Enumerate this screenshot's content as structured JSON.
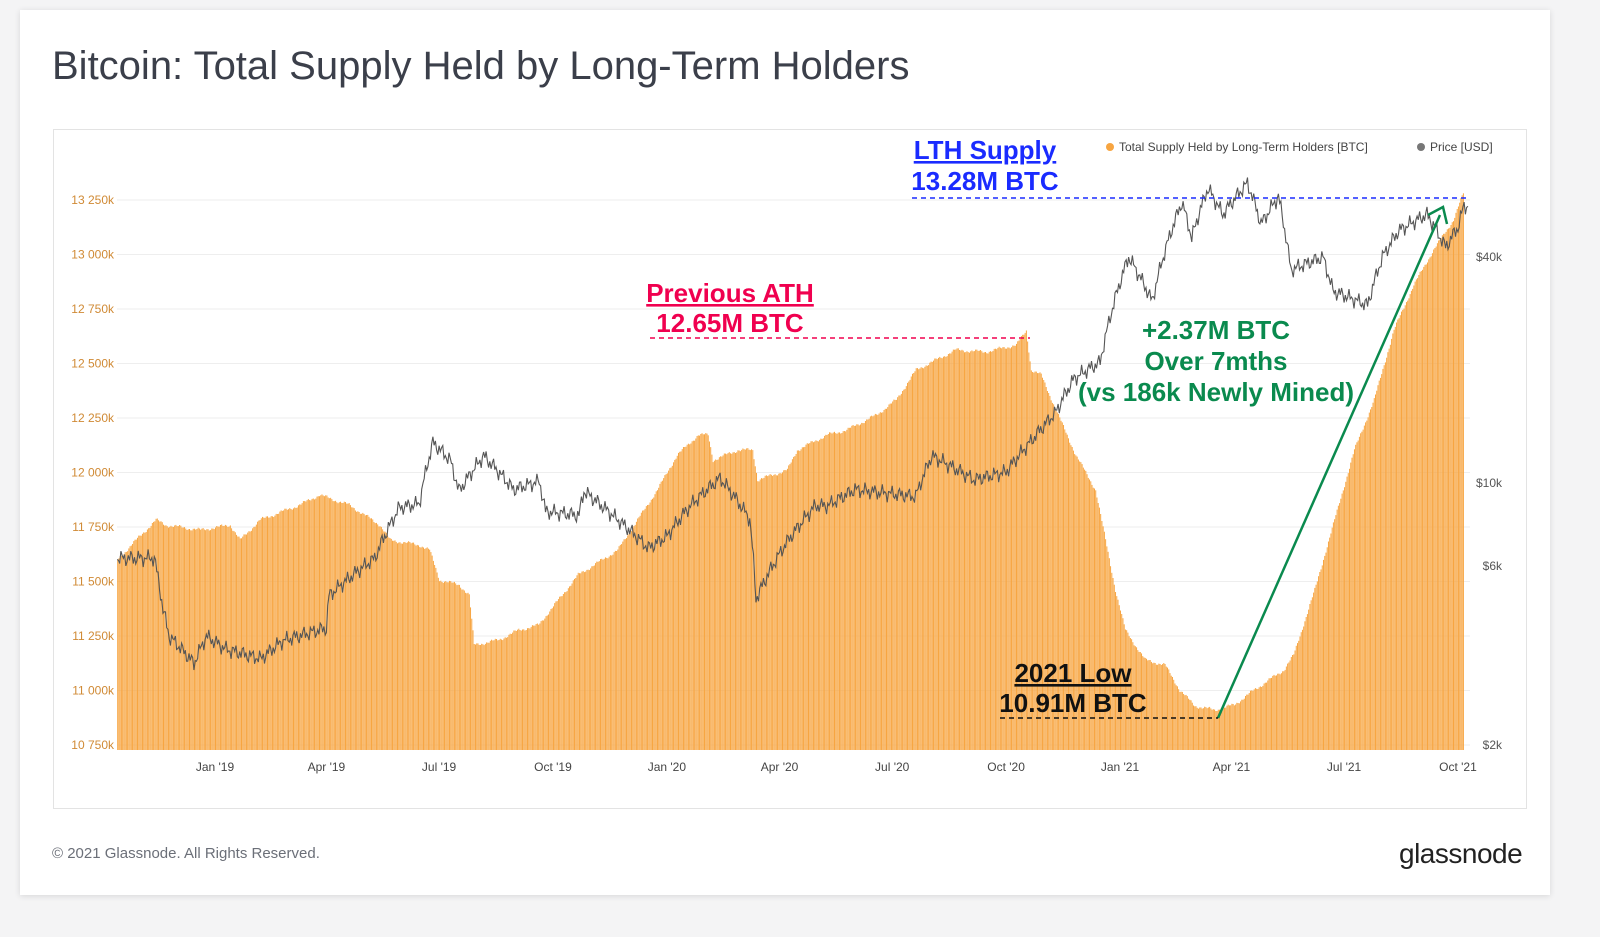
{
  "title": "Bitcoin: Total Supply Held by Long-Term Holders",
  "footer": {
    "copyright": "© 2021 Glassnode. All Rights Reserved.",
    "logo": "glassnode"
  },
  "colors": {
    "lth": "#f7a541",
    "price": "#555555",
    "lth_annotation": "#1a2bff",
    "ath_annotation": "#f0004f",
    "growth_annotation": "#0a8a4e",
    "low_annotation": "#111111"
  },
  "chart_data": {
    "type": "bar",
    "title": "Bitcoin: Total Supply Held by Long-Term Holders",
    "legend_placement": "top-right",
    "grid": true,
    "legend": [
      "Total Supply Held by Long-Term Holders [BTC]",
      "Price [USD]"
    ],
    "y_left": {
      "ticks": [
        "13 250k",
        "13 000k",
        "12 750k",
        "12 500k",
        "12 250k",
        "12 000k",
        "11 750k",
        "11 500k",
        "11 250k",
        "11 000k",
        "10 750k"
      ],
      "range": [
        10750,
        13250
      ],
      "unit": "k BTC"
    },
    "y_right": {
      "scale": "log",
      "ticks": [
        "$40k",
        "$10k",
        "$6k",
        "$2k"
      ],
      "tick_values": [
        40000,
        10000,
        6000,
        2000
      ],
      "range": [
        2000,
        70000
      ]
    },
    "x_ticks": [
      {
        "label": "Jan '19",
        "date": "2019-01-01"
      },
      {
        "label": "Apr '19",
        "date": "2019-04-01"
      },
      {
        "label": "Jul '19",
        "date": "2019-07-01"
      },
      {
        "label": "Oct '19",
        "date": "2019-10-01"
      },
      {
        "label": "Jan '20",
        "date": "2020-01-01"
      },
      {
        "label": "Apr '20",
        "date": "2020-04-01"
      },
      {
        "label": "Jul '20",
        "date": "2020-07-01"
      },
      {
        "label": "Oct '20",
        "date": "2020-10-01"
      },
      {
        "label": "Jan '21",
        "date": "2021-01-01"
      },
      {
        "label": "Apr '21",
        "date": "2021-04-01"
      },
      {
        "label": "Jul '21",
        "date": "2021-07-01"
      },
      {
        "label": "Oct '21",
        "date": "2021-10-01"
      }
    ],
    "series": [
      {
        "name": "Total Supply Held by Long-Term Holders [BTC]",
        "type": "bar",
        "unit": "k BTC",
        "points": [
          [
            "2018-10-14",
            11599
          ],
          [
            "2018-10-25",
            11667
          ],
          [
            "2018-11-14",
            11782
          ],
          [
            "2018-11-22",
            11759
          ],
          [
            "2018-12-20",
            11736
          ],
          [
            "2019-01-13",
            11759
          ],
          [
            "2019-01-21",
            11690
          ],
          [
            "2019-02-06",
            11782
          ],
          [
            "2019-03-10",
            11851
          ],
          [
            "2019-03-26",
            11897
          ],
          [
            "2019-04-19",
            11851
          ],
          [
            "2019-05-14",
            11759
          ],
          [
            "2019-05-22",
            11690
          ],
          [
            "2019-06-15",
            11667
          ],
          [
            "2019-06-23",
            11644
          ],
          [
            "2019-07-01",
            11507
          ],
          [
            "2019-07-17",
            11484
          ],
          [
            "2019-07-25",
            11438
          ],
          [
            "2019-07-29",
            11209
          ],
          [
            "2019-08-18",
            11232
          ],
          [
            "2019-09-03",
            11277
          ],
          [
            "2019-09-19",
            11300
          ],
          [
            "2019-10-05",
            11415
          ],
          [
            "2019-10-21",
            11530
          ],
          [
            "2019-11-22",
            11644
          ],
          [
            "2019-12-08",
            11782
          ],
          [
            "2019-12-24",
            11920
          ],
          [
            "2020-01-09",
            12080
          ],
          [
            "2020-01-26",
            12172
          ],
          [
            "2020-02-03",
            12172
          ],
          [
            "2020-02-07",
            12057
          ],
          [
            "2020-02-27",
            12103
          ],
          [
            "2020-03-10",
            12103
          ],
          [
            "2020-03-14",
            11966
          ],
          [
            "2020-04-07",
            12011
          ],
          [
            "2020-04-15",
            12103
          ],
          [
            "2020-05-09",
            12172
          ],
          [
            "2020-05-25",
            12195
          ],
          [
            "2020-06-18",
            12264
          ],
          [
            "2020-07-04",
            12333
          ],
          [
            "2020-07-20",
            12470
          ],
          [
            "2020-08-05",
            12516
          ],
          [
            "2020-08-21",
            12562
          ],
          [
            "2020-09-14",
            12553
          ],
          [
            "2020-10-09",
            12585
          ],
          [
            "2020-10-17",
            12650
          ],
          [
            "2020-10-21",
            12470
          ],
          [
            "2020-10-29",
            12447
          ],
          [
            "2020-11-10",
            12287
          ],
          [
            "2020-11-26",
            12080
          ],
          [
            "2020-12-12",
            11920
          ],
          [
            "2020-12-20",
            11690
          ],
          [
            "2020-12-28",
            11461
          ],
          [
            "2021-01-05",
            11277
          ],
          [
            "2021-01-21",
            11140
          ],
          [
            "2021-02-06",
            11117
          ],
          [
            "2021-02-18",
            11002
          ],
          [
            "2021-03-02",
            10930
          ],
          [
            "2021-03-18",
            10910
          ],
          [
            "2021-04-03",
            10934
          ],
          [
            "2021-04-19",
            11002
          ],
          [
            "2021-05-13",
            11094
          ],
          [
            "2021-05-21",
            11163
          ],
          [
            "2021-06-07",
            11461
          ],
          [
            "2021-06-23",
            11782
          ],
          [
            "2021-07-09",
            12103
          ],
          [
            "2021-07-25",
            12333
          ],
          [
            "2021-08-10",
            12654
          ],
          [
            "2021-08-26",
            12860
          ],
          [
            "2021-09-11",
            13021
          ],
          [
            "2021-09-27",
            13158
          ],
          [
            "2021-10-05",
            13280
          ]
        ]
      },
      {
        "name": "Price [USD]",
        "type": "line",
        "unit": "USD",
        "points": [
          [
            "2018-10-14",
            6300
          ],
          [
            "2018-11-13",
            6300
          ],
          [
            "2018-11-20",
            4600
          ],
          [
            "2018-11-25",
            3900
          ],
          [
            "2018-12-15",
            3300
          ],
          [
            "2018-12-25",
            3900
          ],
          [
            "2019-01-10",
            3600
          ],
          [
            "2019-02-07",
            3400
          ],
          [
            "2019-02-25",
            3800
          ],
          [
            "2019-04-01",
            4100
          ],
          [
            "2019-04-03",
            5000
          ],
          [
            "2019-05-10",
            6300
          ],
          [
            "2019-05-30",
            8600
          ],
          [
            "2019-06-15",
            8800
          ],
          [
            "2019-06-26",
            12800
          ],
          [
            "2019-07-10",
            11500
          ],
          [
            "2019-07-17",
            9500
          ],
          [
            "2019-08-06",
            11800
          ],
          [
            "2019-08-30",
            9600
          ],
          [
            "2019-09-20",
            10100
          ],
          [
            "2019-09-25",
            8400
          ],
          [
            "2019-10-22",
            8200
          ],
          [
            "2019-10-26",
            9500
          ],
          [
            "2019-11-20",
            8100
          ],
          [
            "2019-12-17",
            6700
          ],
          [
            "2020-01-01",
            7200
          ],
          [
            "2020-01-20",
            8700
          ],
          [
            "2020-02-13",
            10300
          ],
          [
            "2020-03-08",
            8000
          ],
          [
            "2020-03-13",
            4900
          ],
          [
            "2020-04-05",
            6800
          ],
          [
            "2020-04-30",
            8700
          ],
          [
            "2020-05-10",
            8700
          ],
          [
            "2020-06-01",
            9600
          ],
          [
            "2020-07-20",
            9200
          ],
          [
            "2020-08-02",
            11800
          ],
          [
            "2020-09-05",
            10200
          ],
          [
            "2020-10-01",
            10700
          ],
          [
            "2020-10-21",
            12900
          ],
          [
            "2020-11-10",
            15400
          ],
          [
            "2020-11-25",
            19000
          ],
          [
            "2020-12-16",
            21000
          ],
          [
            "2021-01-08",
            40000
          ],
          [
            "2021-01-27",
            30500
          ],
          [
            "2021-02-20",
            56000
          ],
          [
            "2021-02-28",
            45000
          ],
          [
            "2021-03-13",
            61000
          ],
          [
            "2021-03-25",
            52000
          ],
          [
            "2021-04-14",
            63000
          ],
          [
            "2021-04-25",
            49000
          ],
          [
            "2021-05-09",
            58000
          ],
          [
            "2021-05-19",
            37000
          ],
          [
            "2021-06-14",
            40000
          ],
          [
            "2021-06-22",
            32500
          ],
          [
            "2021-07-20",
            29800
          ],
          [
            "2021-08-01",
            40000
          ],
          [
            "2021-08-14",
            47000
          ],
          [
            "2021-09-06",
            52000
          ],
          [
            "2021-09-21",
            42500
          ],
          [
            "2021-10-01",
            48000
          ],
          [
            "2021-10-06",
            55000
          ],
          [
            "2021-10-09",
            54500
          ]
        ]
      }
    ],
    "annotations": [
      {
        "id": "lth",
        "lines": [
          "LTH Supply",
          "13.28M BTC"
        ],
        "value": 13280,
        "color": "#1a2bff"
      },
      {
        "id": "ath",
        "lines": [
          "Previous ATH",
          "12.65M BTC"
        ],
        "value": 12650,
        "color": "#f0004f"
      },
      {
        "id": "growth",
        "lines": [
          "+2.37M BTC",
          "Over 7mths",
          "(vs 186k Newly Mined)"
        ],
        "color": "#0a8a4e"
      },
      {
        "id": "low",
        "lines": [
          "2021 Low",
          "10.91M BTC"
        ],
        "value": 10910,
        "color": "#111111"
      }
    ]
  }
}
